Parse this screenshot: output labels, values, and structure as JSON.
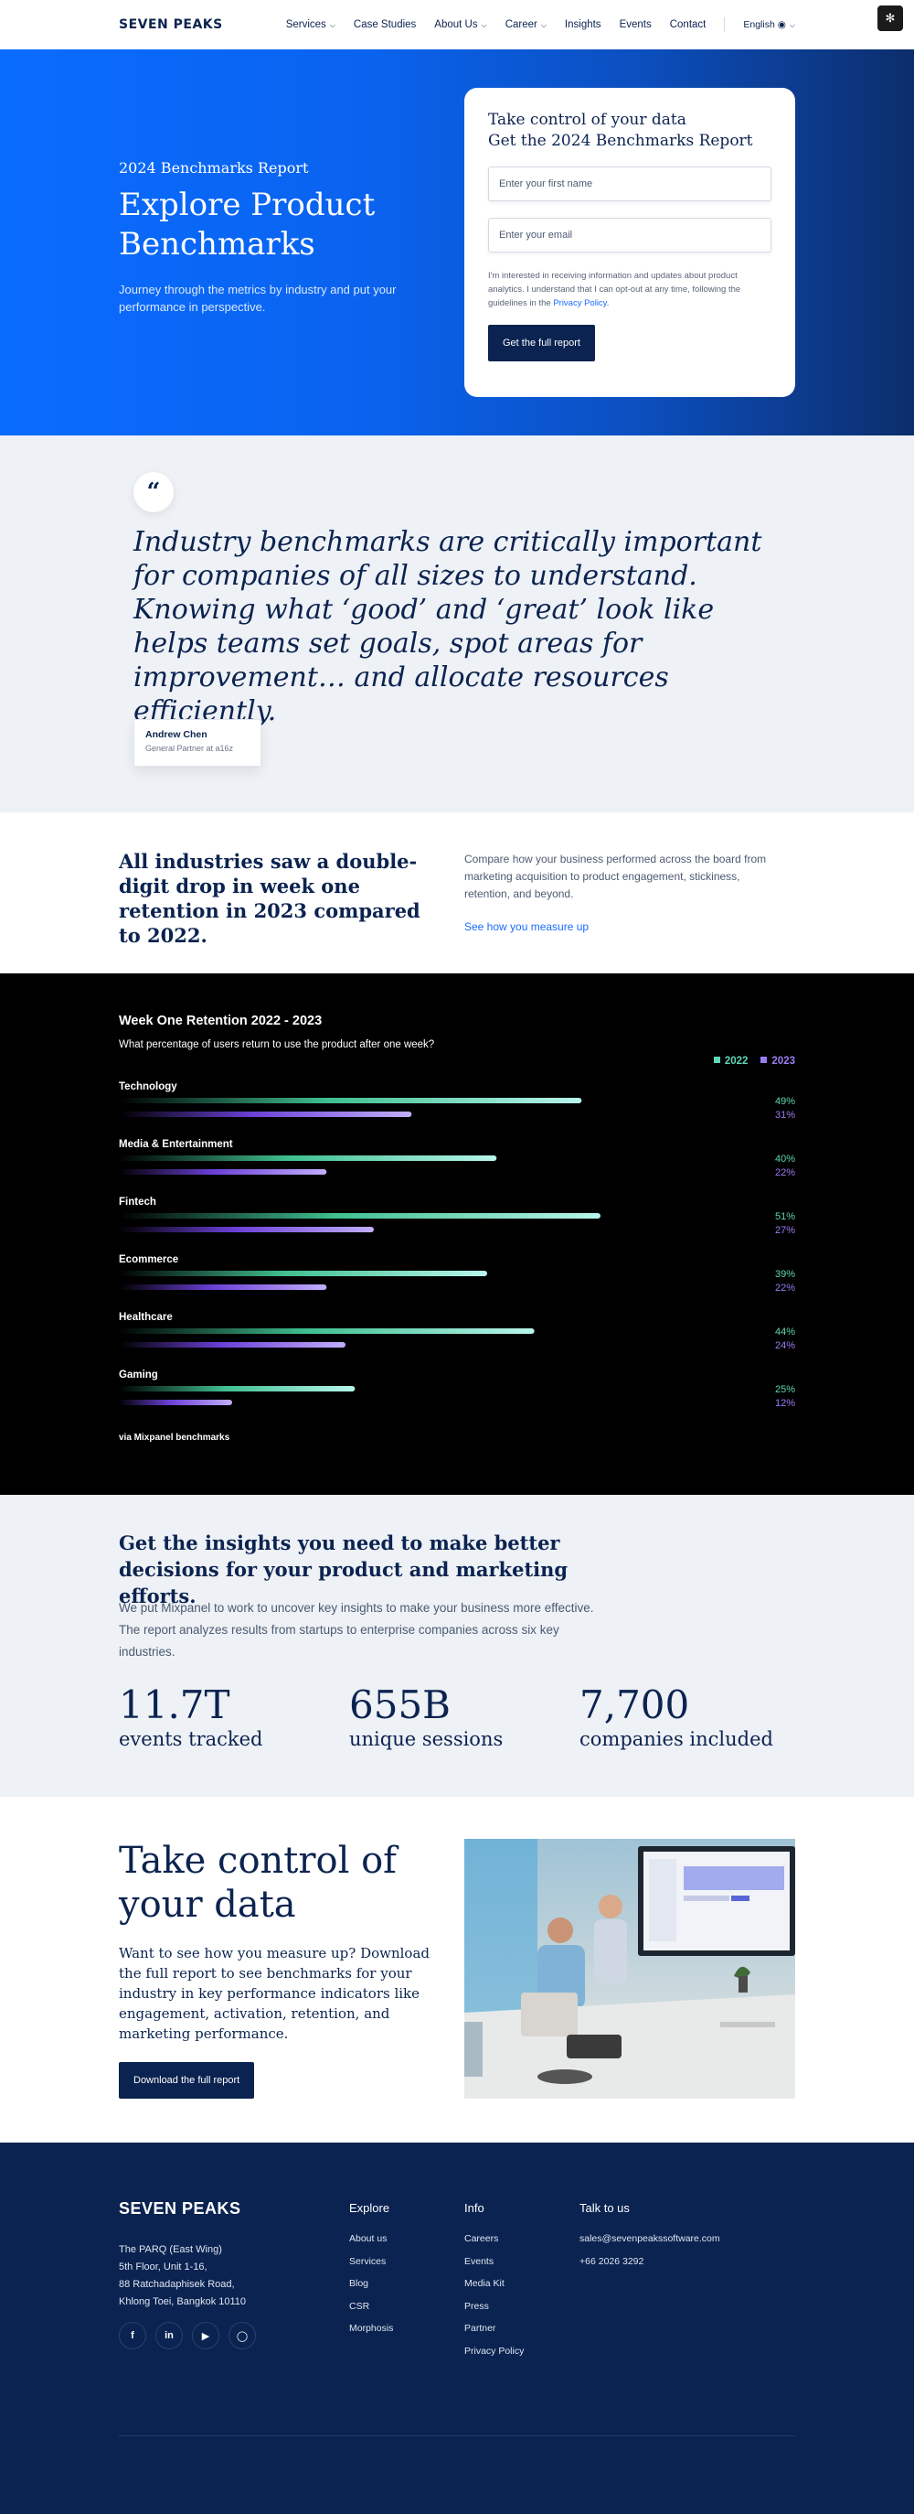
{
  "nav": {
    "logo": "SEVEN PEAKS",
    "links": [
      "Services",
      "Case Studies",
      "About Us",
      "Career",
      "Insights",
      "Events",
      "Contact"
    ],
    "language": "English"
  },
  "hero": {
    "eyebrow": "2024 Benchmarks Report",
    "title": "Explore Product Benchmarks",
    "subtitle": "Journey through the metrics by industry and put your performance in perspective.",
    "form_title_line1": "Take control of your data",
    "form_title_line2": "Get the 2024 Benchmarks Report",
    "first_name_placeholder": "Enter your first name",
    "email_placeholder": "Enter your email",
    "consent_text": "I'm interested in receiving information and updates about product analytics. I understand that I can opt-out at any time, following the guidelines in the",
    "consent_link": "Privacy Policy.",
    "submit_label": "Get the full report"
  },
  "quote": {
    "text": "Industry benchmarks are critically important for companies of all sizes to understand. Knowing what ‘good’ and ‘great’ look like helps teams set goals, spot areas for improvement… and allocate resources efficiently.",
    "author": "Andrew Chen",
    "role": "General Partner at a16z"
  },
  "industries": {
    "title": "All industries saw a double-digit drop in week one retention in 2023 compared to 2022.",
    "description": "Compare how your business performed across the board from marketing acquisition to product engagement, stickiness, retention, and beyond.",
    "link": "See how you measure up"
  },
  "chart": {
    "source": "via Mixpanel benchmarks"
  },
  "chart_data": {
    "type": "bar",
    "title": "Week One Retention 2022 - 2023",
    "subtitle": "What percentage of users return to use the product after one week?",
    "categories": [
      "Technology",
      "Media & Entertainment",
      "Fintech",
      "Ecommerce",
      "Healthcare",
      "Gaming"
    ],
    "series": [
      {
        "name": "2022",
        "values": [
          49,
          40,
          51,
          39,
          44,
          25
        ],
        "color": "#5fd6b4"
      },
      {
        "name": "2023",
        "values": [
          31,
          22,
          27,
          22,
          24,
          12
        ],
        "color": "#9a7cf2"
      }
    ],
    "value_suffix": "%",
    "xlim": [
      0,
      60
    ],
    "orientation": "horizontal",
    "legend": "top-right",
    "grid": false
  },
  "insights": {
    "title": "Get the insights you need to make better decisions for your product and marketing efforts.",
    "description": "We put Mixpanel to work to uncover key insights to make your business more effective. The report analyzes results from startups to enterprise companies across six key industries.",
    "stats": [
      {
        "value": "11.7T",
        "label": "events tracked"
      },
      {
        "value": "655B",
        "label": "unique sessions"
      },
      {
        "value": "7,700",
        "label": "companies included"
      }
    ]
  },
  "cta": {
    "title": "Take control of your data",
    "description": "Want to see how you measure up? Download the full report to see benchmarks for your industry in key performance indicators like engagement, activation, retention, and marketing performance.",
    "button": "Download the full report"
  },
  "footer": {
    "logo": "SEVEN PEAKS",
    "address": [
      "The PARQ (East Wing)",
      "5th Floor, Unit 1-16,",
      "88 Ratchadaphisek Road,",
      "Khlong Toei, Bangkok 10110"
    ],
    "explore_title": "Explore",
    "explore": [
      "About us",
      "Services",
      "Blog",
      "CSR",
      "Morphosis"
    ],
    "info_title": "Info",
    "info": [
      "Careers",
      "Events",
      "Media Kit",
      "Press",
      "Partner",
      "Privacy Policy"
    ],
    "talk_title": "Talk to us",
    "talk": [
      "sales@sevenpeakssoftware.com",
      "+66 2026 3292"
    ]
  },
  "colors": {
    "navy": "#0b2350",
    "accent_blue": "#1a6bff",
    "series_2022": "#5fd6b4",
    "series_2023": "#9a7cf2"
  }
}
